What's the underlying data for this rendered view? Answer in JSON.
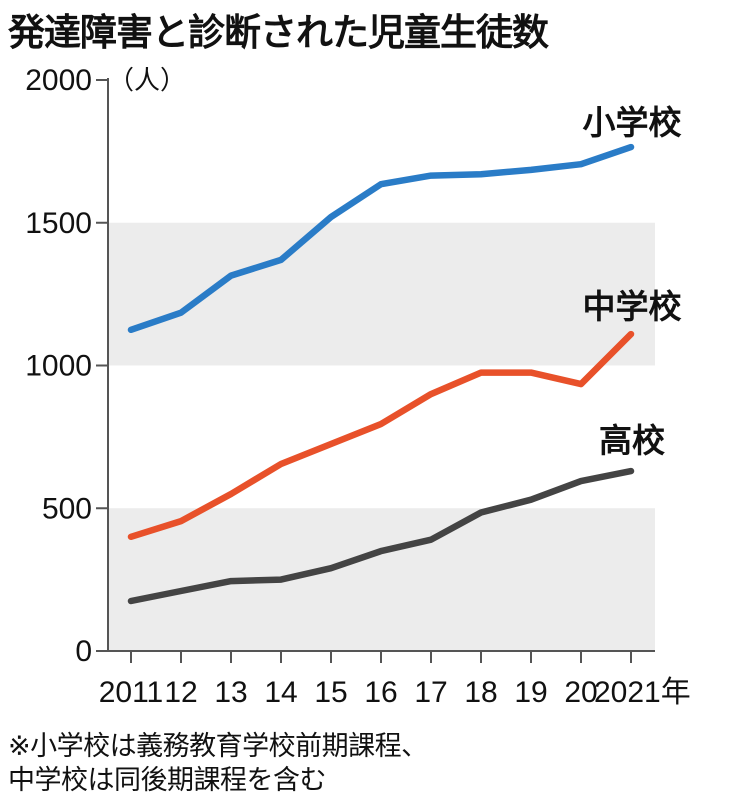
{
  "title": "発達障害と診断された児童生徒数",
  "note": {
    "line1": "※小学校は義務教育学校前期課程、",
    "line2": "中学校は同後期課程を含む"
  },
  "chart_data": {
    "type": "line",
    "title": "発達障害と診断された児童生徒数",
    "unit_label": "（人）",
    "x": [
      2011,
      2012,
      2013,
      2014,
      2015,
      2016,
      2017,
      2018,
      2019,
      2020,
      2021
    ],
    "x_tick_labels": [
      "2011",
      "12",
      "13",
      "14",
      "15",
      "16",
      "17",
      "18",
      "19",
      "20",
      "2021年"
    ],
    "ylim": [
      0,
      2000
    ],
    "y_ticks": [
      0,
      500,
      1000,
      1500,
      2000
    ],
    "grid": "alternating horizontal gray bands",
    "series": [
      {
        "name": "小学校",
        "color": "#2a7cc7",
        "values": [
          1125,
          1185,
          1315,
          1370,
          1520,
          1635,
          1665,
          1670,
          1685,
          1705,
          1765
        ]
      },
      {
        "name": "中学校",
        "color": "#e8512a",
        "values": [
          400,
          455,
          550,
          655,
          725,
          795,
          900,
          975,
          975,
          935,
          1110
        ]
      },
      {
        "name": "高校",
        "color": "#444444",
        "values": [
          175,
          210,
          245,
          250,
          290,
          350,
          390,
          485,
          530,
          595,
          630
        ]
      }
    ]
  }
}
